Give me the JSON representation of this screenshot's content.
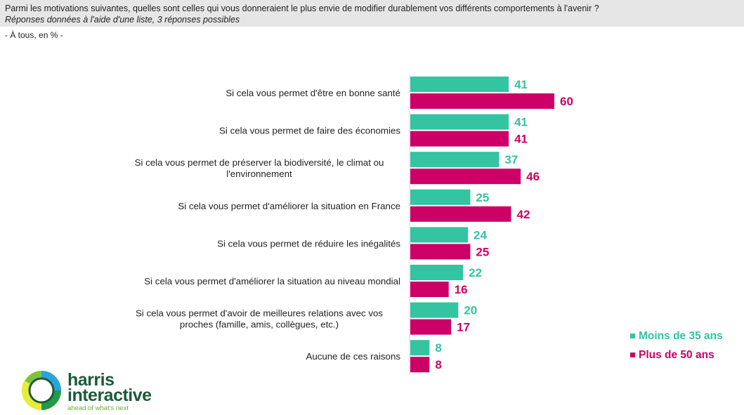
{
  "header": {
    "question": "Parmi les motivations suivantes, quelles sont celles qui vous donneraient le plus envie de modifier durablement vos différents comportements à l'avenir ?",
    "subtitle": "Réponses données à l'aide d'une liste, 3 réponses possibles",
    "base": "- À tous, en %  -"
  },
  "colors": {
    "series1": "#33c4a2",
    "series2": "#cc0066",
    "header_bg": "#e6e6e6"
  },
  "chart_data": {
    "type": "bar",
    "orientation": "horizontal",
    "title": "Parmi les motivations suivantes, quelles sont celles qui vous donneraient le plus envie de modifier durablement vos différents comportements à l'avenir ?",
    "xlabel": "",
    "ylabel": "",
    "xlim": [
      0,
      60
    ],
    "grid": false,
    "legend_position": "bottom-right",
    "categories": [
      [
        "Si cela vous permet d'être en bonne santé"
      ],
      [
        "Si cela vous permet de faire des économies"
      ],
      [
        "Si cela vous permet de préserver la biodiversité, le climat ou",
        "l'environnement"
      ],
      [
        "Si cela vous permet d'améliorer la situation en France"
      ],
      [
        "Si cela vous permet de réduire les inégalités"
      ],
      [
        "Si cela vous permet d'améliorer la situation au niveau mondial"
      ],
      [
        "Si cela vous permet d'avoir de meilleures relations avec vos",
        "proches (famille, amis, collègues, etc.)"
      ],
      [
        "Aucune de ces raisons"
      ]
    ],
    "series": [
      {
        "name": "Moins de 35 ans",
        "values": [
          41,
          41,
          37,
          25,
          24,
          22,
          20,
          8
        ]
      },
      {
        "name": "Plus de 50 ans",
        "values": [
          60,
          41,
          46,
          42,
          25,
          16,
          17,
          8
        ]
      }
    ]
  },
  "legend": {
    "items": [
      "Moins de 35 ans",
      "Plus de 50 ans"
    ]
  },
  "logo": {
    "line1": "harris",
    "line2": "interactive",
    "tagline": "ahead of what's next"
  }
}
